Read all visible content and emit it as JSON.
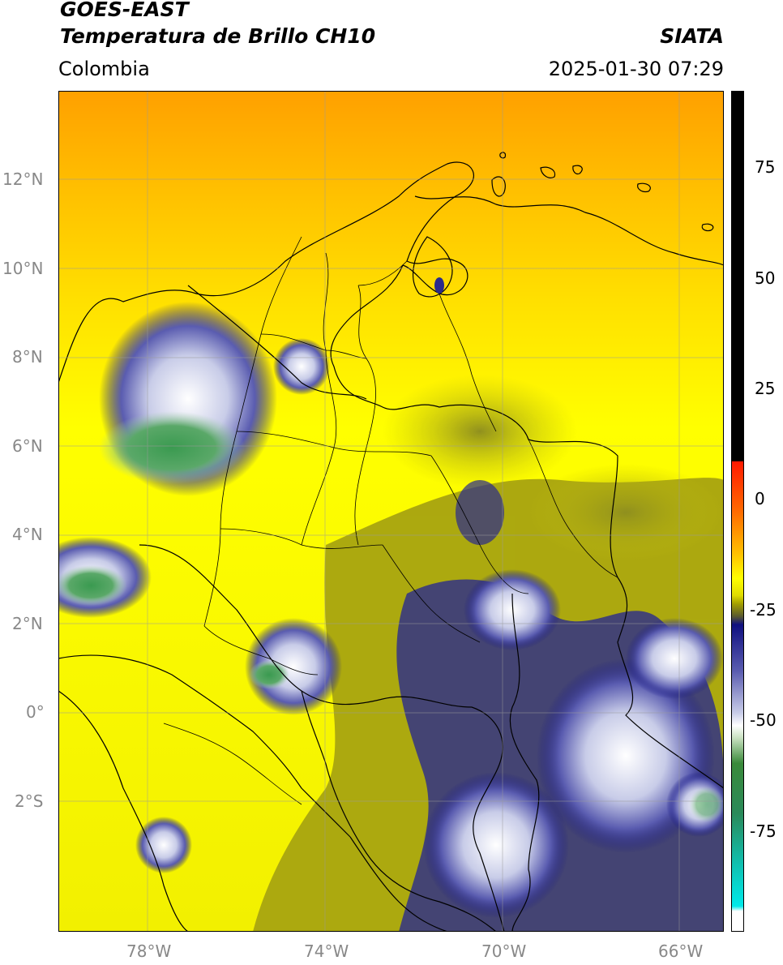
{
  "header": {
    "satellite": "GOES-EAST",
    "product": "Temperatura de Brillo CH10",
    "region": "Colombia",
    "agency": "SIATA",
    "datetime": "2025-01-30 07:29"
  },
  "map": {
    "lat_labels": [
      "12°N",
      "10°N",
      "8°N",
      "6°N",
      "4°N",
      "2°N",
      "0°",
      "2°S"
    ],
    "lon_labels": [
      "78°W",
      "74°W",
      "70°W",
      "66°W"
    ],
    "lon_range": [
      -80.0,
      -65.0
    ],
    "lat_range": [
      -4.9,
      14.0
    ],
    "gridlines": true
  },
  "colorbar": {
    "labels": [
      "75",
      "50",
      "25",
      "0",
      "-25",
      "-50",
      "-75"
    ],
    "range": [
      -97,
      90
    ],
    "colors": {
      "black": "#000000",
      "red": "#ff1a00",
      "orange": "#ffa200",
      "yellow": "#ffff00",
      "olive": "#a4a000",
      "navy": "#101080",
      "white": "#ffffff",
      "green": "#2a8a2a",
      "cyan": "#00dada"
    }
  }
}
